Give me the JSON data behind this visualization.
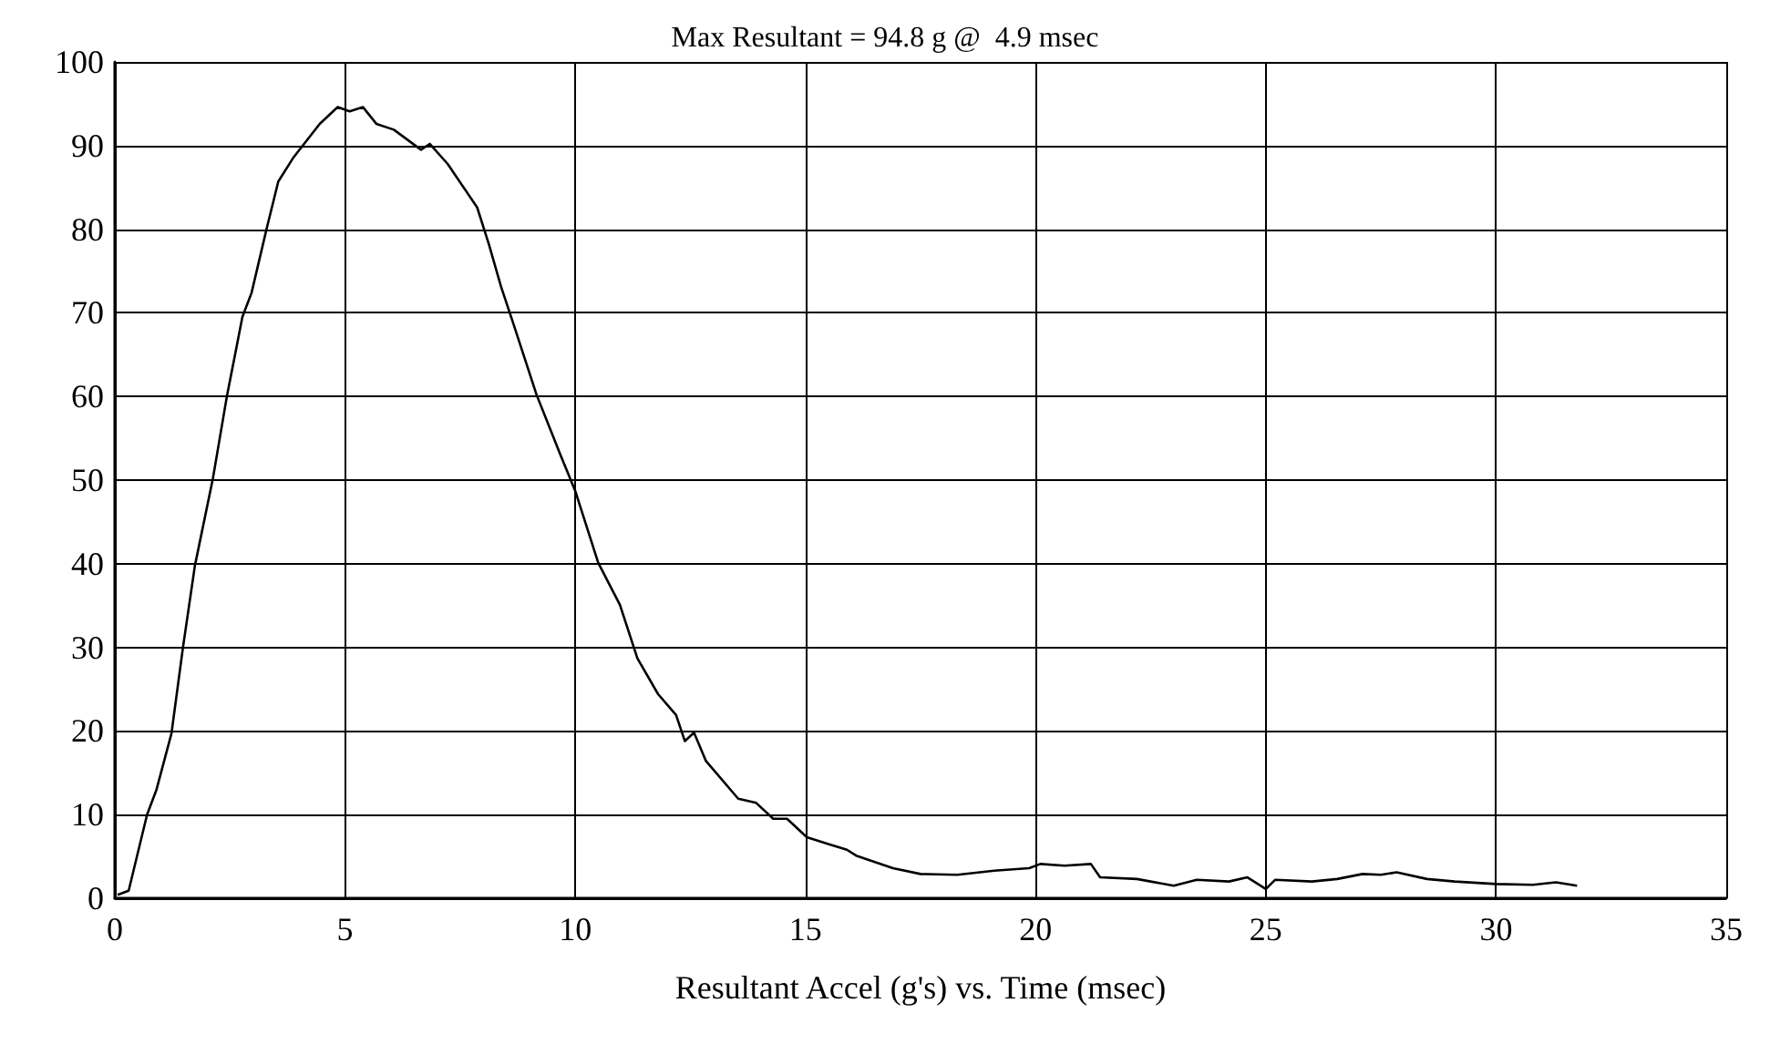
{
  "chart_data": {
    "type": "line",
    "title": "Max Resultant = 94.8 g @  4.9 msec",
    "xlabel": "Resultant Accel (g's) vs. Time (msec)",
    "series": [
      {
        "color": "#000000",
        "x": [
          0.06,
          0.3,
          0.7,
          0.9,
          1.23,
          1.48,
          1.74,
          2.13,
          2.43,
          2.77,
          2.97,
          3.29,
          3.55,
          3.87,
          4.45,
          4.84,
          5.1,
          5.39,
          5.68,
          6.06,
          6.65,
          6.84,
          7.23,
          7.87,
          8.13,
          8.39,
          8.65,
          9.16,
          9.68,
          10,
          10.5,
          10.97,
          11.35,
          11.8,
          12.19,
          12.38,
          12.58,
          12.84,
          13.54,
          13.93,
          14.3,
          14.6,
          15.03,
          15.48,
          15.9,
          16.1,
          16.9,
          17.5,
          18.3,
          19.1,
          19.86,
          20.1,
          20.63,
          21.2,
          21.4,
          22.2,
          23.0,
          23.5,
          24.2,
          24.6,
          25.0,
          25.2,
          26.0,
          26.55,
          27.1,
          27.5,
          27.84,
          28.5,
          29.1,
          30.0,
          30.8,
          31.3,
          31.76
        ],
        "values": [
          0.4,
          0.9,
          10,
          12.9,
          19.7,
          30,
          39.8,
          50.2,
          59.9,
          69.5,
          72.4,
          79.9,
          85.7,
          88.5,
          92.6,
          94.6,
          94.1,
          94.6,
          92.6,
          91.9,
          89.5,
          90.2,
          87.8,
          82.6,
          78.1,
          73.1,
          68.8,
          60.2,
          53,
          48.7,
          40.1,
          35.1,
          28.7,
          24.4,
          21.9,
          18.8,
          19.8,
          16.4,
          11.9,
          11.4,
          9.5,
          9.5,
          7.3,
          6.5,
          5.8,
          5.1,
          3.6,
          2.9,
          2.8,
          3.3,
          3.6,
          4.1,
          3.9,
          4.1,
          2.5,
          2.3,
          1.5,
          2.2,
          2.0,
          2.5,
          1.1,
          2.2,
          2.0,
          2.3,
          2.9,
          2.8,
          3.1,
          2.3,
          2.0,
          1.7,
          1.6,
          1.9,
          1.5
        ]
      }
    ],
    "xlim": [
      0,
      35
    ],
    "xticks": [
      0,
      5,
      10,
      15,
      20,
      25,
      30,
      35
    ],
    "ylim": [
      0,
      100
    ],
    "yticks": [
      0,
      10,
      20,
      30,
      40,
      50,
      60,
      70,
      80,
      90,
      100
    ],
    "grid": true,
    "marker": "none",
    "line_style": "solid"
  }
}
